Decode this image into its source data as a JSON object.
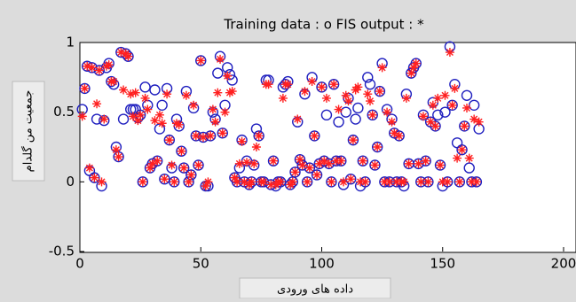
{
  "chart_data": {
    "type": "scatter",
    "title": "Training data : o   FIS output : *",
    "x_label": "داده های ورودی",
    "y_label": "جمعیت من گلدام",
    "x": [
      1,
      2,
      3,
      4,
      5,
      6,
      7,
      8,
      9,
      10,
      11,
      12,
      13,
      14,
      15,
      16,
      17,
      18,
      19,
      20,
      21,
      22,
      23,
      24,
      25,
      26,
      27,
      28,
      29,
      30,
      31,
      32,
      33,
      34,
      35,
      36,
      37,
      38,
      39,
      40,
      41,
      42,
      43,
      44,
      45,
      46,
      47,
      48,
      49,
      50,
      51,
      52,
      53,
      54,
      55,
      56,
      57,
      58,
      59,
      60,
      61,
      62,
      63,
      64,
      65,
      66,
      67,
      68,
      69,
      70,
      71,
      72,
      73,
      74,
      75,
      76,
      77,
      78,
      79,
      80,
      81,
      82,
      83,
      84,
      85,
      86,
      87,
      88,
      89,
      90,
      91,
      92,
      93,
      94,
      95,
      96,
      97,
      98,
      99,
      100,
      101,
      102,
      103,
      104,
      105,
      106,
      107,
      108,
      109,
      110,
      111,
      112,
      113,
      114,
      115,
      116,
      117,
      118,
      119,
      120,
      121,
      122,
      123,
      124,
      125,
      126,
      127,
      128,
      129,
      130,
      131,
      132,
      133,
      134,
      135,
      136,
      137,
      138,
      139,
      140,
      141,
      142,
      143,
      144,
      145,
      146,
      147,
      148,
      149,
      150,
      151,
      152,
      153,
      154,
      155,
      156,
      157,
      158,
      159,
      160,
      161,
      162,
      163,
      164,
      165
    ],
    "series": [
      {
        "marker": "o",
        "color": "#1f1fbf",
        "values": [
          0.52,
          0.67,
          0.83,
          0.08,
          0.82,
          0.03,
          0.45,
          0.8,
          -0.03,
          0.44,
          0.82,
          0.85,
          0.72,
          0.7,
          0.25,
          0.18,
          0.93,
          0.45,
          0.92,
          0.9,
          0.52,
          0.52,
          0.52,
          0.46,
          0.48,
          0.0,
          0.68,
          0.55,
          0.1,
          0.13,
          0.66,
          0.15,
          0.38,
          0.55,
          0.02,
          0.67,
          0.3,
          0.1,
          0.0,
          0.45,
          0.4,
          0.22,
          0.1,
          0.65,
          0.0,
          0.05,
          0.53,
          0.33,
          0.12,
          0.87,
          0.32,
          -0.03,
          -0.03,
          0.33,
          0.5,
          0.45,
          0.78,
          0.9,
          0.35,
          0.55,
          0.82,
          0.77,
          0.73,
          0.03,
          0.0,
          0.1,
          0.3,
          0.0,
          0.15,
          -0.02,
          0.0,
          0.12,
          0.38,
          0.33,
          0.0,
          0.0,
          0.73,
          0.73,
          -0.02,
          0.15,
          -0.03,
          0.0,
          0.0,
          0.68,
          0.7,
          0.72,
          -0.02,
          0.0,
          0.07,
          0.43,
          0.16,
          0.12,
          0.63,
          0.0,
          0.1,
          0.75,
          0.33,
          0.05,
          0.13,
          0.68,
          0.15,
          0.48,
          0.13,
          0.0,
          0.7,
          0.15,
          0.43,
          0.15,
          -0.02,
          0.5,
          0.6,
          0.02,
          0.3,
          0.45,
          0.53,
          -0.03,
          0.15,
          0.0,
          0.75,
          0.7,
          0.48,
          0.12,
          0.25,
          0.65,
          0.85,
          0.0,
          0.52,
          0.0,
          0.45,
          0.35,
          0.0,
          0.33,
          0.0,
          -0.03,
          0.63,
          0.13,
          0.78,
          0.82,
          0.85,
          0.13,
          0.0,
          0.48,
          0.15,
          0.0,
          0.43,
          0.57,
          0.4,
          0.48,
          0.12,
          -0.03,
          0.5,
          0.0,
          0.97,
          0.55,
          0.7,
          0.28,
          0.0,
          0.23,
          0.4,
          0.62,
          0.1,
          0.0,
          0.55,
          0.0,
          0.38
        ]
      },
      {
        "marker": "*",
        "color": "#ff2020",
        "values": [
          0.47,
          0.67,
          0.83,
          0.1,
          0.82,
          0.03,
          0.56,
          0.8,
          0.0,
          0.45,
          0.83,
          0.84,
          0.72,
          0.72,
          0.23,
          0.18,
          0.93,
          0.66,
          0.92,
          0.9,
          0.63,
          0.47,
          0.64,
          0.44,
          0.48,
          0.0,
          0.6,
          0.52,
          0.1,
          0.13,
          0.44,
          0.15,
          0.48,
          0.42,
          0.02,
          0.63,
          0.3,
          0.12,
          0.0,
          0.42,
          0.41,
          0.22,
          0.1,
          0.62,
          0.0,
          0.05,
          0.55,
          0.33,
          0.12,
          0.87,
          0.32,
          -0.03,
          0.0,
          0.33,
          0.52,
          0.43,
          0.64,
          0.88,
          0.35,
          0.5,
          0.76,
          0.64,
          0.65,
          0.03,
          0.0,
          0.13,
          0.29,
          0.0,
          0.14,
          -0.02,
          0.0,
          0.13,
          0.25,
          0.33,
          0.0,
          0.0,
          0.7,
          0.7,
          -0.02,
          0.15,
          -0.02,
          0.0,
          0.0,
          0.6,
          0.7,
          0.7,
          -0.02,
          0.0,
          0.07,
          0.45,
          0.16,
          0.12,
          0.65,
          0.0,
          0.1,
          0.72,
          0.33,
          0.05,
          0.13,
          0.68,
          0.15,
          0.6,
          0.13,
          0.0,
          0.7,
          0.15,
          0.52,
          0.15,
          0.0,
          0.62,
          0.58,
          0.02,
          0.3,
          0.66,
          0.68,
          0.0,
          0.15,
          0.0,
          0.63,
          0.58,
          0.48,
          0.12,
          0.25,
          0.65,
          0.82,
          0.0,
          0.5,
          0.0,
          0.43,
          0.35,
          0.0,
          0.33,
          0.0,
          0.0,
          0.6,
          0.13,
          0.78,
          0.82,
          0.85,
          0.13,
          0.0,
          0.47,
          0.15,
          0.0,
          0.43,
          0.55,
          0.4,
          0.6,
          0.12,
          0.0,
          0.62,
          0.0,
          0.93,
          0.55,
          0.67,
          0.17,
          0.0,
          0.23,
          0.4,
          0.53,
          0.17,
          0.0,
          0.45,
          0.0,
          0.43
        ]
      }
    ],
    "xlim": [
      0,
      200
    ],
    "xticks": [
      0,
      50,
      100,
      150,
      200
    ],
    "ylim": [
      -0.5,
      1
    ],
    "yticks": [
      -0.5,
      0,
      0.5,
      1
    ]
  }
}
